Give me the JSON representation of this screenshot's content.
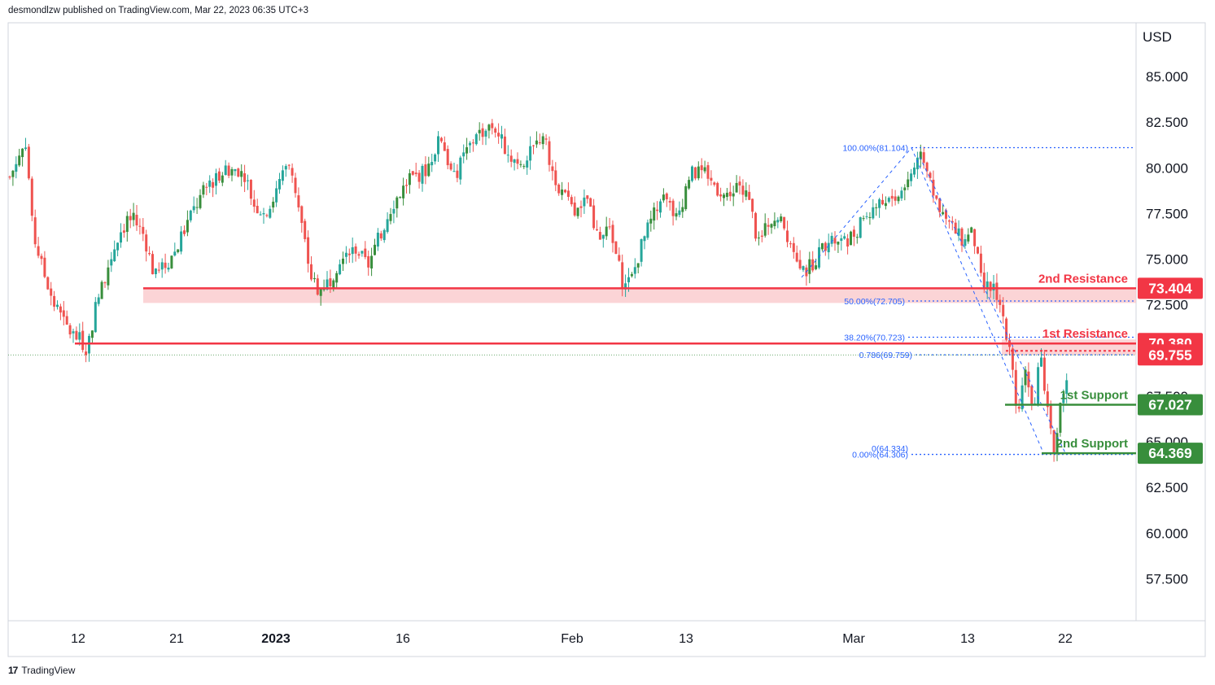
{
  "header": {
    "published": "desmondlzw published on TradingView.com, Mar 22, 2023 06:35 UTC+3"
  },
  "footer": {
    "brand": "TradingView",
    "logo_text": "17"
  },
  "chart_data": {
    "type": "candlestick",
    "currency": "USD",
    "ylim": [
      55.0,
      87.5
    ],
    "y_ticks": [
      "85.000",
      "82.500",
      "80.000",
      "77.500",
      "75.000",
      "72.500",
      "67.500",
      "65.000",
      "62.500",
      "60.000",
      "57.500"
    ],
    "x_ticks": [
      {
        "label": "12",
        "bold": false
      },
      {
        "label": "21",
        "bold": false
      },
      {
        "label": "2023",
        "bold": true
      },
      {
        "label": "16",
        "bold": false
      },
      {
        "label": "Feb",
        "bold": false
      },
      {
        "label": "13",
        "bold": false
      },
      {
        "label": "Mar",
        "bold": false
      },
      {
        "label": "13",
        "bold": false
      },
      {
        "label": "22",
        "bold": false
      }
    ],
    "price_path": [
      [
        0,
        79.5
      ],
      [
        20,
        81.5
      ],
      [
        28,
        76.5
      ],
      [
        40,
        74.5
      ],
      [
        55,
        72.5
      ],
      [
        70,
        71.2
      ],
      [
        85,
        70.6
      ],
      [
        95,
        70.1
      ],
      [
        105,
        72.3
      ],
      [
        120,
        74.5
      ],
      [
        135,
        76.5
      ],
      [
        150,
        77.3
      ],
      [
        165,
        76.3
      ],
      [
        178,
        74.0
      ],
      [
        192,
        74.7
      ],
      [
        205,
        75.6
      ],
      [
        220,
        77.2
      ],
      [
        240,
        78.8
      ],
      [
        260,
        79.8
      ],
      [
        285,
        80.0
      ],
      [
        300,
        78.0
      ],
      [
        315,
        77.4
      ],
      [
        335,
        79.5
      ],
      [
        345,
        80.3
      ],
      [
        358,
        77.0
      ],
      [
        370,
        74.0
      ],
      [
        380,
        73.3
      ],
      [
        395,
        74.0
      ],
      [
        410,
        75.5
      ],
      [
        425,
        75.6
      ],
      [
        440,
        74.6
      ],
      [
        455,
        76.3
      ],
      [
        470,
        78.0
      ],
      [
        490,
        79.3
      ],
      [
        510,
        79.8
      ],
      [
        530,
        81.7
      ],
      [
        545,
        79.3
      ],
      [
        560,
        80.8
      ],
      [
        575,
        81.9
      ],
      [
        595,
        82.3
      ],
      [
        615,
        80.5
      ],
      [
        635,
        80.4
      ],
      [
        655,
        81.9
      ],
      [
        665,
        80.0
      ],
      [
        680,
        78.5
      ],
      [
        695,
        77.4
      ],
      [
        710,
        78.3
      ],
      [
        720,
        76.1
      ],
      [
        735,
        76.7
      ],
      [
        745,
        75.2
      ],
      [
        755,
        73.4
      ],
      [
        765,
        74.0
      ],
      [
        775,
        75.6
      ],
      [
        790,
        77.3
      ],
      [
        805,
        78.3
      ],
      [
        820,
        77.2
      ],
      [
        835,
        79.6
      ],
      [
        850,
        79.8
      ],
      [
        865,
        79.1
      ],
      [
        880,
        78.4
      ],
      [
        895,
        79.3
      ],
      [
        910,
        77.9
      ],
      [
        920,
        75.7
      ],
      [
        935,
        77.3
      ],
      [
        950,
        76.9
      ],
      [
        965,
        75.4
      ],
      [
        978,
        74.3
      ],
      [
        990,
        75.0
      ],
      [
        1005,
        76.1
      ],
      [
        1020,
        76.0
      ],
      [
        1035,
        76.2
      ],
      [
        1050,
        77.3
      ],
      [
        1065,
        77.9
      ],
      [
        1080,
        78.3
      ],
      [
        1095,
        78.6
      ],
      [
        1110,
        79.9
      ],
      [
        1122,
        80.6
      ],
      [
        1130,
        79.8
      ],
      [
        1140,
        77.6
      ],
      [
        1155,
        76.9
      ],
      [
        1170,
        76.0
      ],
      [
        1182,
        76.9
      ],
      [
        1195,
        73.4
      ],
      [
        1210,
        73.6
      ],
      [
        1220,
        71.9
      ],
      [
        1230,
        69.5
      ],
      [
        1238,
        66.8
      ],
      [
        1248,
        68.7
      ],
      [
        1258,
        66.9
      ],
      [
        1266,
        69.8
      ],
      [
        1275,
        66.9
      ],
      [
        1283,
        64.7
      ],
      [
        1292,
        67.4
      ],
      [
        1300,
        68.8
      ],
      [
        1306,
        69.8
      ],
      [
        1312,
        69.76
      ]
    ],
    "fib_levels": [
      {
        "label": "100.00%(81.104)",
        "value": 81.104
      },
      {
        "label": "50.00%(72.705)",
        "value": 72.705
      },
      {
        "label": "38.20%(70.723)",
        "value": 70.723
      },
      {
        "label": "0.786(69.759)",
        "value": 69.759
      },
      {
        "label": "0(64.334)",
        "value": 64.334
      },
      {
        "label": "0.00%(64.306)",
        "value": 64.306
      }
    ],
    "levels": [
      {
        "name": "2nd Resistance",
        "value": 73.404,
        "tag": "73.404",
        "color": "#f23645"
      },
      {
        "name": "1st Resistance",
        "value": 70.38,
        "tag": "70.380",
        "color": "#f23645"
      },
      {
        "name": "1st Support",
        "value": 67.027,
        "tag": "67.027",
        "color": "#388e3c"
      },
      {
        "name": "2nd Support",
        "value": 64.369,
        "tag": "64.369",
        "color": "#388e3c"
      }
    ],
    "last_price": {
      "value": 69.755,
      "tag": "69.755",
      "color": "#f23645"
    },
    "colors": {
      "up": "#26a69a",
      "up_dark": "#388e3c",
      "down": "#ef5350",
      "resistance": "#f23645",
      "support": "#388e3c",
      "zone": "#f9c5c8",
      "fib": "#2962ff",
      "grid": "#e0e3eb"
    }
  }
}
